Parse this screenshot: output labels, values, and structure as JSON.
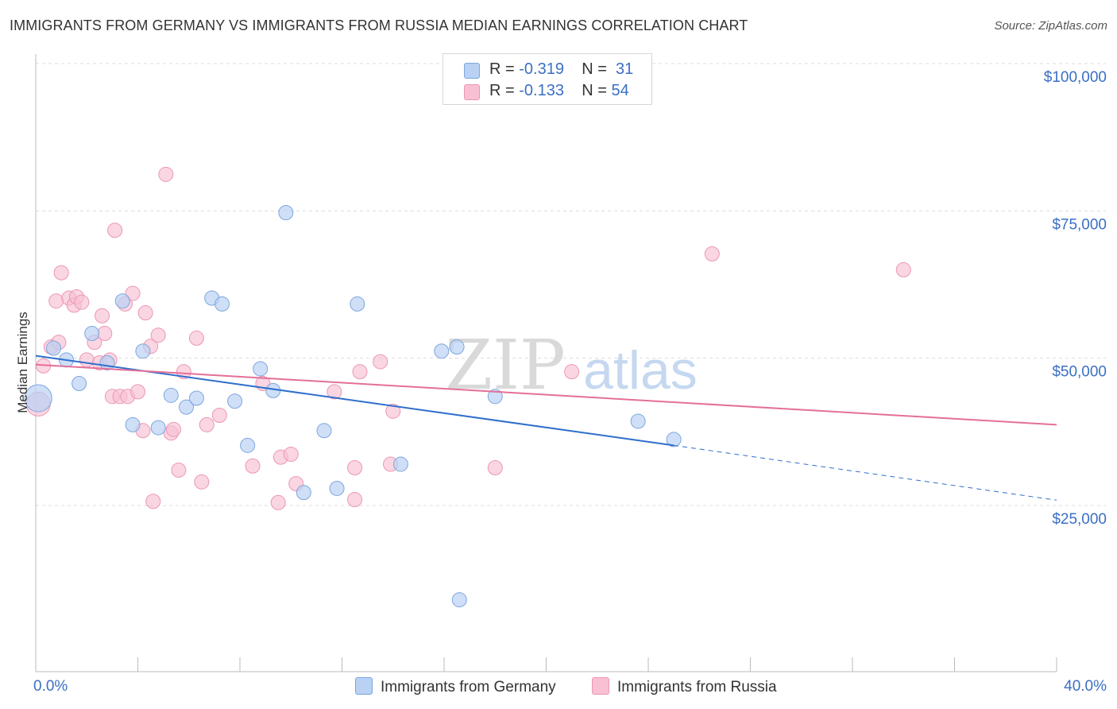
{
  "title": "IMMIGRANTS FROM GERMANY VS IMMIGRANTS FROM RUSSIA MEDIAN EARNINGS CORRELATION CHART",
  "source": "Source: ZipAtlas.com",
  "watermark": {
    "zip": "ZIP",
    "atlas": "atlas"
  },
  "legend": {
    "germany": {
      "r_label": "R = ",
      "r_value": "-0.319",
      "n_label": "N = ",
      "n_value": "31"
    },
    "russia": {
      "r_label": "R = ",
      "r_value": "-0.133",
      "n_label": "N = ",
      "n_value": "54"
    }
  },
  "colors": {
    "germany_fill": "#b9d1f3",
    "germany_stroke": "#7ea6df",
    "germany_line": "#2f6fcc",
    "russia_fill": "#f8c0d2",
    "russia_stroke": "#ec96b3",
    "russia_line": "#e46f98",
    "grid": "#dcdcdc",
    "tick_label": "#3b6fc4"
  },
  "chart_data": {
    "type": "scatter",
    "xlabel": "",
    "ylabel": "Median Earnings",
    "xlim": [
      0,
      40
    ],
    "ylim": [
      0,
      105000
    ],
    "x_tick_labels": [
      "0.0%",
      "40.0%"
    ],
    "y_ticks": [
      {
        "value": 25000,
        "label": "$25,000"
      },
      {
        "value": 50000,
        "label": "$50,000"
      },
      {
        "value": 75000,
        "label": "$75,000"
      },
      {
        "value": 100000,
        "label": "$100,000"
      }
    ],
    "grid": true,
    "legend_position": "top-center",
    "series": [
      {
        "name": "Immigrants from Germany",
        "points": [
          [
            0.1,
            45500
          ],
          [
            0.7,
            54000
          ],
          [
            1.2,
            52000
          ],
          [
            1.7,
            48000
          ],
          [
            2.2,
            56500
          ],
          [
            2.8,
            51500
          ],
          [
            3.4,
            62000
          ],
          [
            3.8,
            41000
          ],
          [
            4.2,
            53500
          ],
          [
            4.8,
            40500
          ],
          [
            5.3,
            46000
          ],
          [
            5.9,
            44000
          ],
          [
            6.3,
            45500
          ],
          [
            6.9,
            62500
          ],
          [
            7.3,
            61500
          ],
          [
            7.8,
            45000
          ],
          [
            8.3,
            37500
          ],
          [
            8.8,
            50500
          ],
          [
            9.3,
            46800
          ],
          [
            9.8,
            77000
          ],
          [
            10.5,
            29500
          ],
          [
            11.3,
            40000
          ],
          [
            11.8,
            30200
          ],
          [
            12.6,
            61500
          ],
          [
            14.3,
            34300
          ],
          [
            15.9,
            53500
          ],
          [
            16.5,
            54200
          ],
          [
            16.6,
            11300
          ],
          [
            18.0,
            45800
          ],
          [
            23.6,
            41600
          ],
          [
            25.0,
            38500
          ]
        ],
        "trend": {
          "x0": 0,
          "y0": 52700,
          "x1": 25.0,
          "y1": 37500,
          "x_dash_end": 40,
          "y_dash_end": 28200
        }
      },
      {
        "name": "Immigrants from Russia",
        "points": [
          [
            0.1,
            44500
          ],
          [
            0.3,
            51000
          ],
          [
            0.6,
            54200
          ],
          [
            0.8,
            62000
          ],
          [
            0.9,
            55000
          ],
          [
            1.0,
            66800
          ],
          [
            1.3,
            62500
          ],
          [
            1.5,
            61300
          ],
          [
            1.6,
            62700
          ],
          [
            1.8,
            61800
          ],
          [
            2.0,
            52000
          ],
          [
            2.3,
            55000
          ],
          [
            2.5,
            51500
          ],
          [
            2.6,
            59500
          ],
          [
            2.7,
            56500
          ],
          [
            2.9,
            52000
          ],
          [
            3.0,
            45800
          ],
          [
            3.1,
            74000
          ],
          [
            3.3,
            45800
          ],
          [
            3.5,
            61500
          ],
          [
            3.6,
            45800
          ],
          [
            3.8,
            63300
          ],
          [
            4.0,
            46600
          ],
          [
            4.2,
            40000
          ],
          [
            4.3,
            60000
          ],
          [
            4.5,
            54300
          ],
          [
            4.6,
            28000
          ],
          [
            4.8,
            56200
          ],
          [
            5.1,
            83500
          ],
          [
            5.3,
            39600
          ],
          [
            5.4,
            40200
          ],
          [
            5.6,
            33300
          ],
          [
            5.8,
            50000
          ],
          [
            6.3,
            55700
          ],
          [
            6.5,
            31300
          ],
          [
            6.7,
            41000
          ],
          [
            7.2,
            42600
          ],
          [
            8.5,
            34000
          ],
          [
            8.9,
            48000
          ],
          [
            9.5,
            27800
          ],
          [
            9.6,
            35500
          ],
          [
            10.0,
            36000
          ],
          [
            10.2,
            31000
          ],
          [
            11.7,
            46600
          ],
          [
            12.5,
            33700
          ],
          [
            12.5,
            28300
          ],
          [
            12.7,
            50000
          ],
          [
            13.5,
            51700
          ],
          [
            13.9,
            34300
          ],
          [
            14.0,
            43300
          ],
          [
            18.0,
            33700
          ],
          [
            21.0,
            50000
          ],
          [
            26.5,
            70000
          ],
          [
            34.0,
            67300
          ]
        ],
        "trend": {
          "x0": 0,
          "y0": 51200,
          "x1": 40,
          "y1": 41000
        }
      }
    ]
  }
}
